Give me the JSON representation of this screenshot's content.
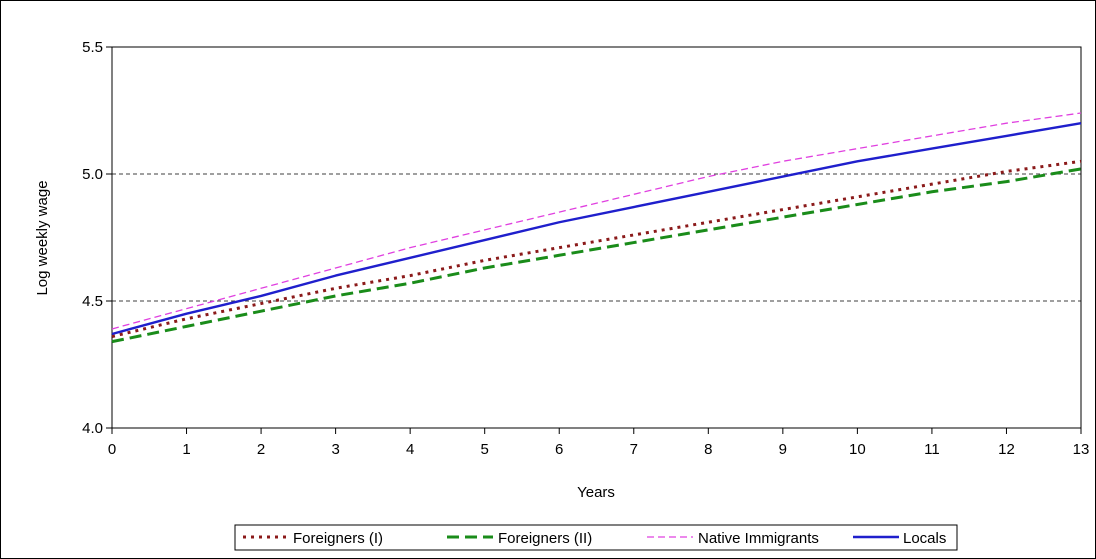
{
  "chart_data": {
    "type": "line",
    "xlabel": "Years",
    "ylabel": "Log weekly wage",
    "xlim": [
      0,
      13
    ],
    "ylim": [
      4.0,
      5.5
    ],
    "x_ticks": [
      "0",
      "1",
      "2",
      "3",
      "4",
      "5",
      "6",
      "7",
      "8",
      "9",
      "10",
      "11",
      "12",
      "13"
    ],
    "y_ticks": [
      "4.0",
      "4.5",
      "5.0",
      "5.5"
    ],
    "gridlines_y": [
      4.5,
      5.0
    ],
    "legend_position": "bottom",
    "x": [
      0,
      1,
      2,
      3,
      4,
      5,
      6,
      7,
      8,
      9,
      10,
      11,
      12,
      13
    ],
    "series": [
      {
        "name": "Foreigners (I)",
        "color": "#8b1a1a",
        "style": "dotted",
        "values": [
          4.36,
          4.43,
          4.49,
          4.55,
          4.6,
          4.66,
          4.71,
          4.76,
          4.81,
          4.86,
          4.91,
          4.96,
          5.01,
          5.05
        ]
      },
      {
        "name": "Foreigners (II)",
        "color": "#1a8c1a",
        "style": "dashed",
        "values": [
          4.34,
          4.4,
          4.46,
          4.52,
          4.57,
          4.63,
          4.68,
          4.73,
          4.78,
          4.83,
          4.88,
          4.93,
          4.97,
          5.02
        ]
      },
      {
        "name": "Native Immigrants",
        "color": "#e040e0",
        "style": "dashed-thin",
        "values": [
          4.39,
          4.47,
          4.55,
          4.63,
          4.71,
          4.78,
          4.85,
          4.92,
          4.99,
          5.05,
          5.1,
          5.15,
          5.2,
          5.24
        ]
      },
      {
        "name": "Locals",
        "color": "#1f1fcc",
        "style": "solid",
        "values": [
          4.37,
          4.45,
          4.52,
          4.6,
          4.67,
          4.74,
          4.81,
          4.87,
          4.93,
          4.99,
          5.05,
          5.1,
          5.15,
          5.2
        ]
      }
    ]
  }
}
